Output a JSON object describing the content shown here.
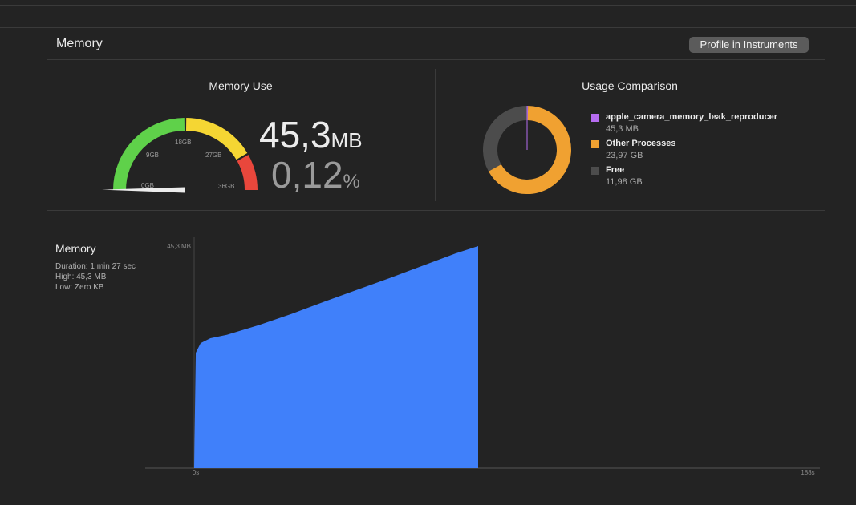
{
  "section": {
    "title": "Memory",
    "profile_button": "Profile in Instruments"
  },
  "memory_use": {
    "title": "Memory Use",
    "value": "45,3",
    "value_unit": "MB",
    "percent": "0,12",
    "percent_unit": "%",
    "gauge": {
      "labels": [
        "0GB",
        "9GB",
        "18GB",
        "27GB",
        "36GB"
      ],
      "segment_colors": [
        "#5fd14a",
        "#f5d633",
        "#e9473c"
      ],
      "needle_fraction": 0.0012
    }
  },
  "usage_comparison": {
    "title": "Usage Comparison",
    "items": [
      {
        "label": "apple_camera_memory_leak_reproducer",
        "value": "45,3 MB",
        "color": "#b66cf0",
        "gb": 0.0453
      },
      {
        "label": "Other Processes",
        "value": "23,97 GB",
        "color": "#f0a131",
        "gb": 23.97
      },
      {
        "label": "Free",
        "value": "11,98 GB",
        "color": "#4c4c4c",
        "gb": 11.98
      }
    ]
  },
  "graph": {
    "title": "Memory",
    "duration": "Duration: 1 min 27 sec",
    "high": "High: 45,3 MB",
    "low": "Low: Zero KB",
    "y_max_label": "45,3 MB",
    "x_start_label": "0s",
    "x_end_label": "188s",
    "color": "#4080fa"
  },
  "chart_data": {
    "type": "area",
    "xlabel": "",
    "ylabel": "",
    "xlim": [
      0,
      188
    ],
    "ylim": [
      0,
      45.3
    ],
    "x": [
      0,
      0.5,
      2,
      5,
      10,
      20,
      30,
      40,
      50,
      60,
      70,
      80,
      87
    ],
    "y": [
      0,
      23.5,
      25.5,
      26.5,
      27.2,
      29.2,
      31.5,
      34.0,
      36.4,
      38.8,
      41.3,
      43.8,
      45.3
    ],
    "series": [
      {
        "values": [
          0,
          23.5,
          25.5,
          26.5,
          27.2,
          29.2,
          31.5,
          34.0,
          36.4,
          38.8,
          41.3,
          43.8,
          45.3
        ]
      }
    ]
  }
}
